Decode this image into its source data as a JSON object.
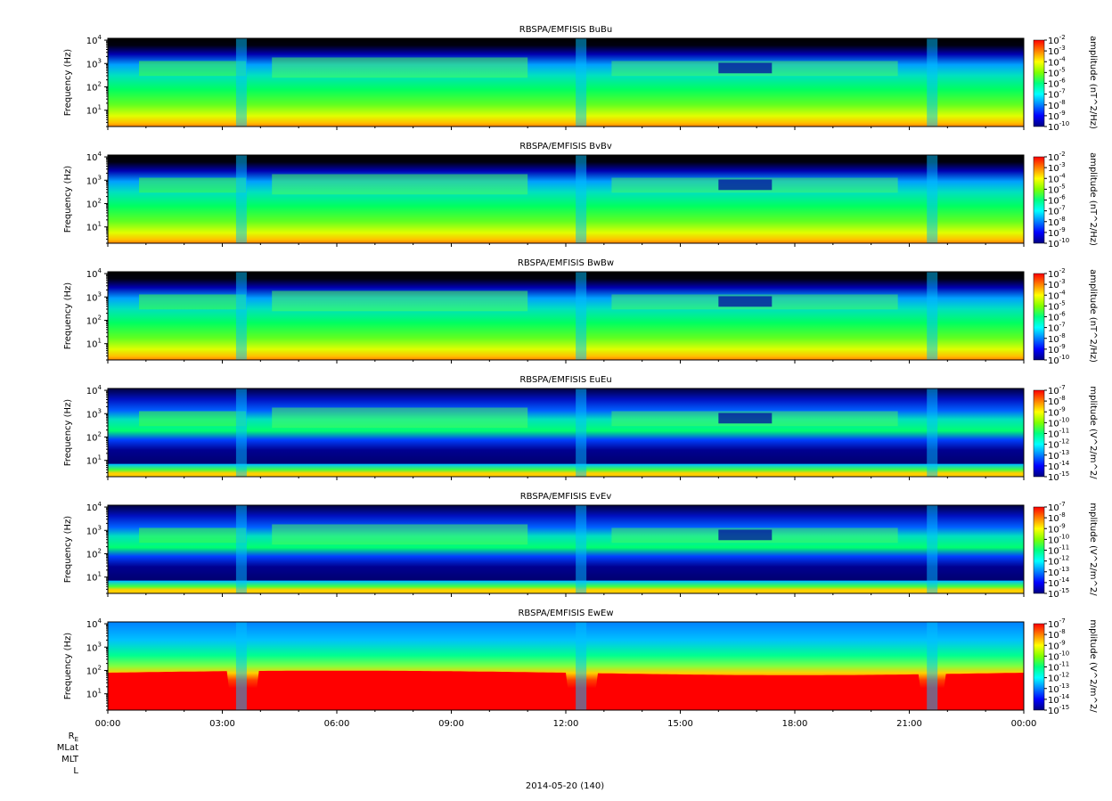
{
  "chart_data": {
    "type": "heatmap",
    "date_label": "2014-05-20 (140)",
    "x_ticks": [
      "00:00",
      "03:00",
      "06:00",
      "09:00",
      "12:00",
      "15:00",
      "18:00",
      "21:00",
      "00:00"
    ],
    "x_range_hours": [
      0,
      24
    ],
    "y_ticks": [
      {
        "base": "10",
        "exp": "1"
      },
      {
        "base": "10",
        "exp": "2"
      },
      {
        "base": "10",
        "exp": "3"
      },
      {
        "base": "10",
        "exp": "4"
      }
    ],
    "y_scale": "log",
    "y_range_hz": [
      2,
      12000
    ],
    "ephemeris_labels": [
      {
        "base": "R",
        "sub": "E"
      },
      {
        "base": "MLat",
        "sub": ""
      },
      {
        "base": "MLT",
        "sub": ""
      },
      {
        "base": "L",
        "sub": ""
      }
    ],
    "panels": [
      {
        "title": "RBSPA/EMFISIS  BuBu",
        "ylabel": "Frequency (Hz)",
        "cbar_label": "amplitude (nT^2/Hz)",
        "cbar_exps": [
          "-2",
          "-3",
          "-4",
          "-5",
          "-6",
          "-7",
          "-8",
          "-9",
          "-10"
        ],
        "kind": "B"
      },
      {
        "title": "RBSPA/EMFISIS  BvBv",
        "ylabel": "Frequency (Hz)",
        "cbar_label": "amplitude (nT^2/Hz)",
        "cbar_exps": [
          "-2",
          "-3",
          "-4",
          "-5",
          "-6",
          "-7",
          "-8",
          "-9",
          "-10"
        ],
        "kind": "B"
      },
      {
        "title": "RBSPA/EMFISIS  BwBw",
        "ylabel": "Frequency (Hz)",
        "cbar_label": "amplitude (nT^2/Hz)",
        "cbar_exps": [
          "-2",
          "-3",
          "-4",
          "-5",
          "-6",
          "-7",
          "-8",
          "-9",
          "-10"
        ],
        "kind": "Bw"
      },
      {
        "title": "RBSPA/EMFISIS  EuEu",
        "ylabel": "Frequency (Hz)",
        "cbar_label": "mplitude (V^2/m^2/",
        "cbar_exps": [
          "-7",
          "-8",
          "-9",
          "-10",
          "-11",
          "-12",
          "-13",
          "-14",
          "-15"
        ],
        "kind": "E"
      },
      {
        "title": "RBSPA/EMFISIS  EvEv",
        "ylabel": "Frequency (Hz)",
        "cbar_label": "mplitude (V^2/m^2/",
        "cbar_exps": [
          "-7",
          "-8",
          "-9",
          "-10",
          "-11",
          "-12",
          "-13",
          "-14",
          "-15"
        ],
        "kind": "E"
      },
      {
        "title": "RBSPA/EMFISIS  EwEw",
        "ylabel": "Frequency (Hz)",
        "cbar_label": "mplitude (V^2/m^2/",
        "cbar_exps": [
          "-7",
          "-8",
          "-9",
          "-10",
          "-11",
          "-12",
          "-13",
          "-14",
          "-15"
        ],
        "kind": "Ew"
      }
    ],
    "colormap": [
      "#000080",
      "#0000ff",
      "#0080ff",
      "#00ffff",
      "#00ff80",
      "#80ff00",
      "#ffff00",
      "#ff8000",
      "#ff0000"
    ]
  }
}
